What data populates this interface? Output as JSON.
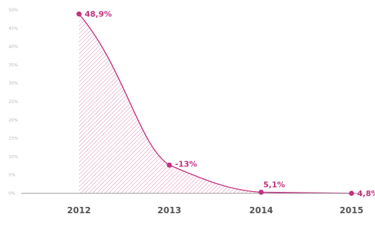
{
  "chart_data": {
    "type": "area",
    "x": [
      "2012",
      "2013",
      "2014",
      "2015"
    ],
    "series": [
      {
        "values": [
          48.9,
          -13,
          5.1,
          4.8
        ],
        "labels": [
          "48,9%",
          "-13%",
          "5,1%",
          "4,8%"
        ]
      }
    ],
    "y_ticks": [
      "0%",
      "5%",
      "10%",
      "15%",
      "20%",
      "25%",
      "30%",
      "35%",
      "40%",
      "45%",
      "50%"
    ],
    "grid": false,
    "legend": "none",
    "title": "",
    "xlabel": "",
    "ylabel": "",
    "colors": {
      "accent": "#c2327f",
      "axis": "#9a9a9a",
      "tick_text": "#b9b9b9",
      "x_text": "#555555"
    }
  }
}
